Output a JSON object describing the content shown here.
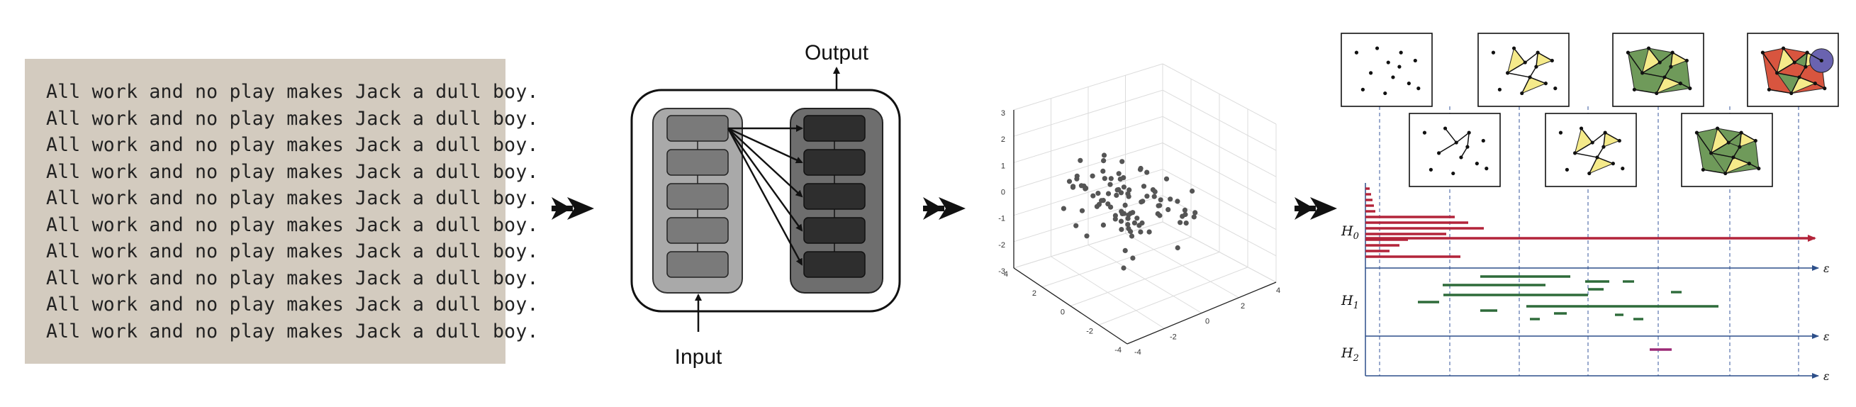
{
  "text_panel": {
    "lines": [
      "All work and no play makes Jack a dull boy.",
      "All work and no play makes Jack a dull boy.",
      "All work and no play makes Jack a dull boy.",
      "All work and no play makes Jack a dull boy.",
      "All work and no play makes Jack a dull boy.",
      "All work and no play makes Jack a dull boy.",
      "All work and no play makes Jack a dull boy.",
      "All work and no play makes Jack a dull boy.",
      "All work and no play makes Jack a dull boy.",
      "All work and no play makes Jack a dull boy."
    ],
    "background": "#d3cbbf"
  },
  "network": {
    "input_label": "Input",
    "output_label": "Output",
    "encoder_color": "#7a7a7a",
    "decoder_color": "#2e2e2e"
  },
  "scatter3d": {
    "z_ticks": [
      "3",
      "2",
      "1",
      "0",
      "-1",
      "-2",
      "-3"
    ],
    "x_ticks": [
      "4",
      "2",
      "0",
      "-2",
      "-4"
    ],
    "y_ticks": [
      "-4",
      "-2",
      "0",
      "2",
      "4"
    ]
  },
  "barcode": {
    "h0_label": "H",
    "h0_sub": "0",
    "h1_label": "H",
    "h1_sub": "1",
    "h2_label": "H",
    "h2_sub": "2",
    "axis_label": "ε",
    "h0_color": "#b3243a",
    "h1_color": "#2e6b3a",
    "h2_color": "#9c2a76",
    "complex_colors": {
      "yellow": "#f5ea8a",
      "green": "#6f9a5a",
      "red": "#d8553f",
      "purple": "#6a63b0"
    }
  }
}
